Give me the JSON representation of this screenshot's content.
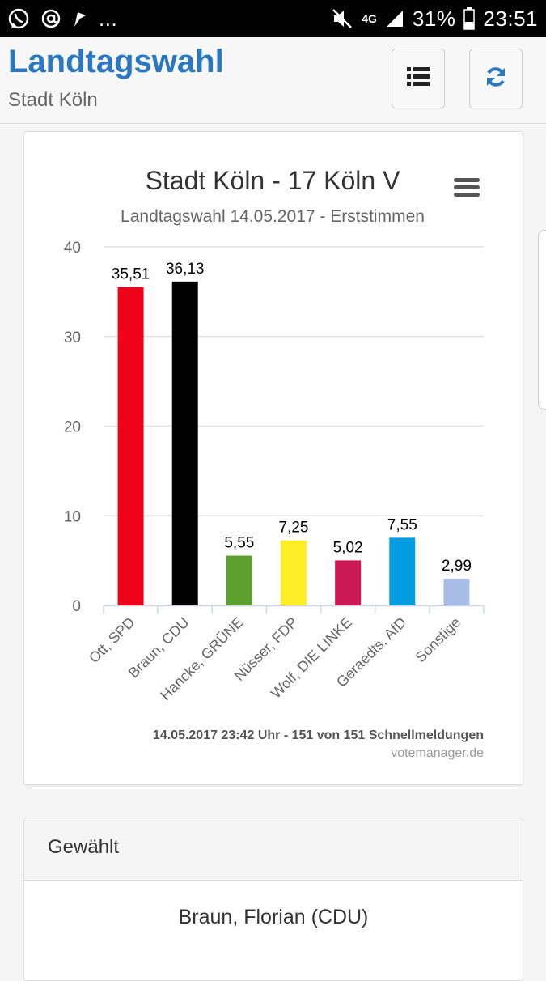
{
  "status_bar": {
    "notif_dots": "...",
    "network": "4G",
    "battery": "31%",
    "time": "23:51",
    "icons": [
      "whatsapp-icon",
      "at-icon",
      "flag-icon",
      "mute-icon",
      "signal-icon",
      "battery-icon"
    ]
  },
  "header": {
    "title": "Landtagswahl",
    "subtitle": "Stadt Köln",
    "buttons": [
      "list-icon",
      "refresh-icon"
    ]
  },
  "chart_data": {
    "type": "bar",
    "title": "Stadt Köln - 17 Köln V",
    "subtitle": "Landtagswahl 14.05.2017 - Erststimmen",
    "categories": [
      "Ott, SPD",
      "Braun, CDU",
      "Hancke, GRÜNE",
      "Nüsser, FDP",
      "Wolf, DIE LINKE",
      "Geraedts, AfD",
      "Sonstige"
    ],
    "values": [
      35.51,
      36.13,
      5.55,
      7.25,
      5.02,
      7.55,
      2.99
    ],
    "value_labels": [
      "35,51",
      "36,13",
      "5,55",
      "7,25",
      "5,02",
      "7,55",
      "2,99"
    ],
    "colors": [
      "#f00019",
      "#000000",
      "#5ca12d",
      "#ffee27",
      "#cc1855",
      "#009ee0",
      "#a7bde8"
    ],
    "yticks": [
      "0",
      "10",
      "20",
      "30",
      "40"
    ],
    "ylim": [
      0,
      40
    ],
    "xlabel": "",
    "ylabel": "",
    "grid": true,
    "credits_line": "14.05.2017 23:42 Uhr - 151 von 151 Schnellmeldungen",
    "credits_source": "votemanager.de"
  },
  "elected": {
    "heading": "Gewählt",
    "name": "Braun, Florian (CDU)"
  }
}
